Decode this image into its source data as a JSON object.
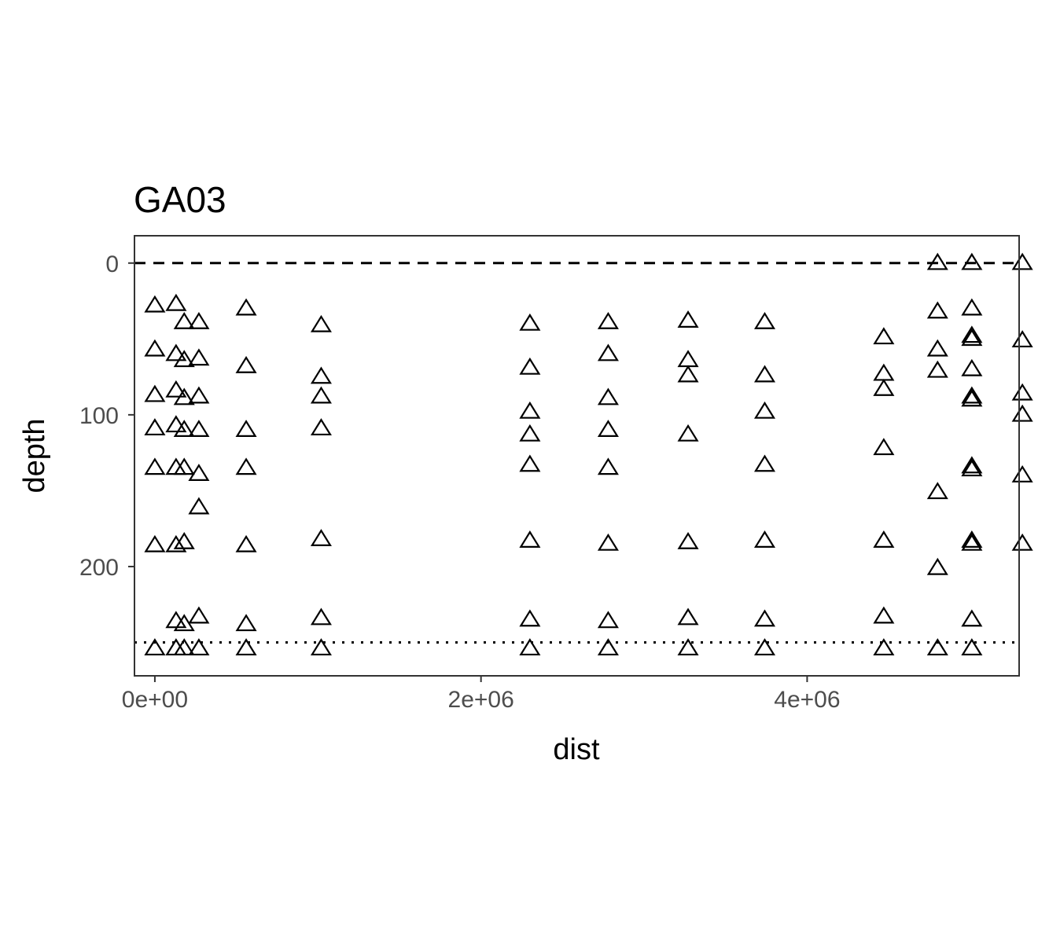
{
  "chart_data": {
    "type": "scatter",
    "title": "GA03",
    "xlabel": "dist",
    "ylabel": "depth",
    "xlim": [
      -125000,
      5300000
    ],
    "ylim": [
      -18,
      272
    ],
    "y_reversed": true,
    "x_ticks": [
      {
        "value": 0,
        "label": "0e+00"
      },
      {
        "value": 2000000,
        "label": "2e+06"
      },
      {
        "value": 4000000,
        "label": "4e+06"
      }
    ],
    "y_ticks": [
      {
        "value": 0,
        "label": "0"
      },
      {
        "value": 100,
        "label": "100"
      },
      {
        "value": 200,
        "label": "200"
      }
    ],
    "reference_lines": [
      {
        "orientation": "horizontal",
        "value": 0,
        "style": "dashed"
      },
      {
        "orientation": "horizontal",
        "value": 250,
        "style": "dotted"
      }
    ],
    "marker": "open-triangle",
    "grid": false,
    "points": [
      [
        0,
        28
      ],
      [
        0,
        57
      ],
      [
        0,
        87
      ],
      [
        0,
        109
      ],
      [
        0,
        135
      ],
      [
        0,
        186
      ],
      [
        0,
        254
      ],
      [
        130000,
        27
      ],
      [
        130000,
        60
      ],
      [
        130000,
        84
      ],
      [
        130000,
        107
      ],
      [
        130000,
        135
      ],
      [
        130000,
        186
      ],
      [
        130000,
        236
      ],
      [
        130000,
        254
      ],
      [
        180000,
        39
      ],
      [
        180000,
        64
      ],
      [
        180000,
        89
      ],
      [
        180000,
        110
      ],
      [
        180000,
        135
      ],
      [
        180000,
        184
      ],
      [
        180000,
        238
      ],
      [
        180000,
        254
      ],
      [
        270000,
        39
      ],
      [
        270000,
        63
      ],
      [
        270000,
        88
      ],
      [
        270000,
        110
      ],
      [
        270000,
        139
      ],
      [
        270000,
        161
      ],
      [
        270000,
        233
      ],
      [
        270000,
        254
      ],
      [
        560000,
        30
      ],
      [
        560000,
        68
      ],
      [
        560000,
        110
      ],
      [
        560000,
        135
      ],
      [
        560000,
        186
      ],
      [
        560000,
        238
      ],
      [
        560000,
        254
      ],
      [
        1020000,
        41
      ],
      [
        1020000,
        75
      ],
      [
        1020000,
        88
      ],
      [
        1020000,
        109
      ],
      [
        1020000,
        182
      ],
      [
        1020000,
        234
      ],
      [
        1020000,
        254
      ],
      [
        2300000,
        40
      ],
      [
        2300000,
        69
      ],
      [
        2300000,
        98
      ],
      [
        2300000,
        113
      ],
      [
        2300000,
        133
      ],
      [
        2300000,
        183
      ],
      [
        2300000,
        235
      ],
      [
        2300000,
        254
      ],
      [
        2780000,
        39
      ],
      [
        2780000,
        60
      ],
      [
        2780000,
        89
      ],
      [
        2780000,
        110
      ],
      [
        2780000,
        135
      ],
      [
        2780000,
        185
      ],
      [
        2780000,
        236
      ],
      [
        2780000,
        254
      ],
      [
        3270000,
        38
      ],
      [
        3270000,
        64
      ],
      [
        3270000,
        74
      ],
      [
        3270000,
        113
      ],
      [
        3270000,
        184
      ],
      [
        3270000,
        234
      ],
      [
        3270000,
        254
      ],
      [
        3740000,
        39
      ],
      [
        3740000,
        74
      ],
      [
        3740000,
        98
      ],
      [
        3740000,
        133
      ],
      [
        3740000,
        183
      ],
      [
        3740000,
        235
      ],
      [
        3740000,
        254
      ],
      [
        4470000,
        49
      ],
      [
        4470000,
        73
      ],
      [
        4470000,
        83
      ],
      [
        4470000,
        122
      ],
      [
        4470000,
        183
      ],
      [
        4470000,
        233
      ],
      [
        4470000,
        254
      ],
      [
        4800000,
        0
      ],
      [
        4800000,
        32
      ],
      [
        4800000,
        57
      ],
      [
        4800000,
        71
      ],
      [
        4800000,
        151
      ],
      [
        4800000,
        201
      ],
      [
        4800000,
        254
      ],
      [
        5010000,
        0
      ],
      [
        5010000,
        30
      ],
      [
        5010000,
        48
      ],
      [
        5010000,
        50
      ],
      [
        5010000,
        70
      ],
      [
        5010000,
        88
      ],
      [
        5010000,
        90
      ],
      [
        5010000,
        134
      ],
      [
        5010000,
        136
      ],
      [
        5010000,
        183
      ],
      [
        5010000,
        185
      ],
      [
        5010000,
        235
      ],
      [
        5010000,
        254
      ],
      [
        5320000,
        0
      ],
      [
        5320000,
        51
      ],
      [
        5320000,
        86
      ],
      [
        5320000,
        100
      ],
      [
        5320000,
        140
      ],
      [
        5320000,
        185
      ]
    ]
  }
}
